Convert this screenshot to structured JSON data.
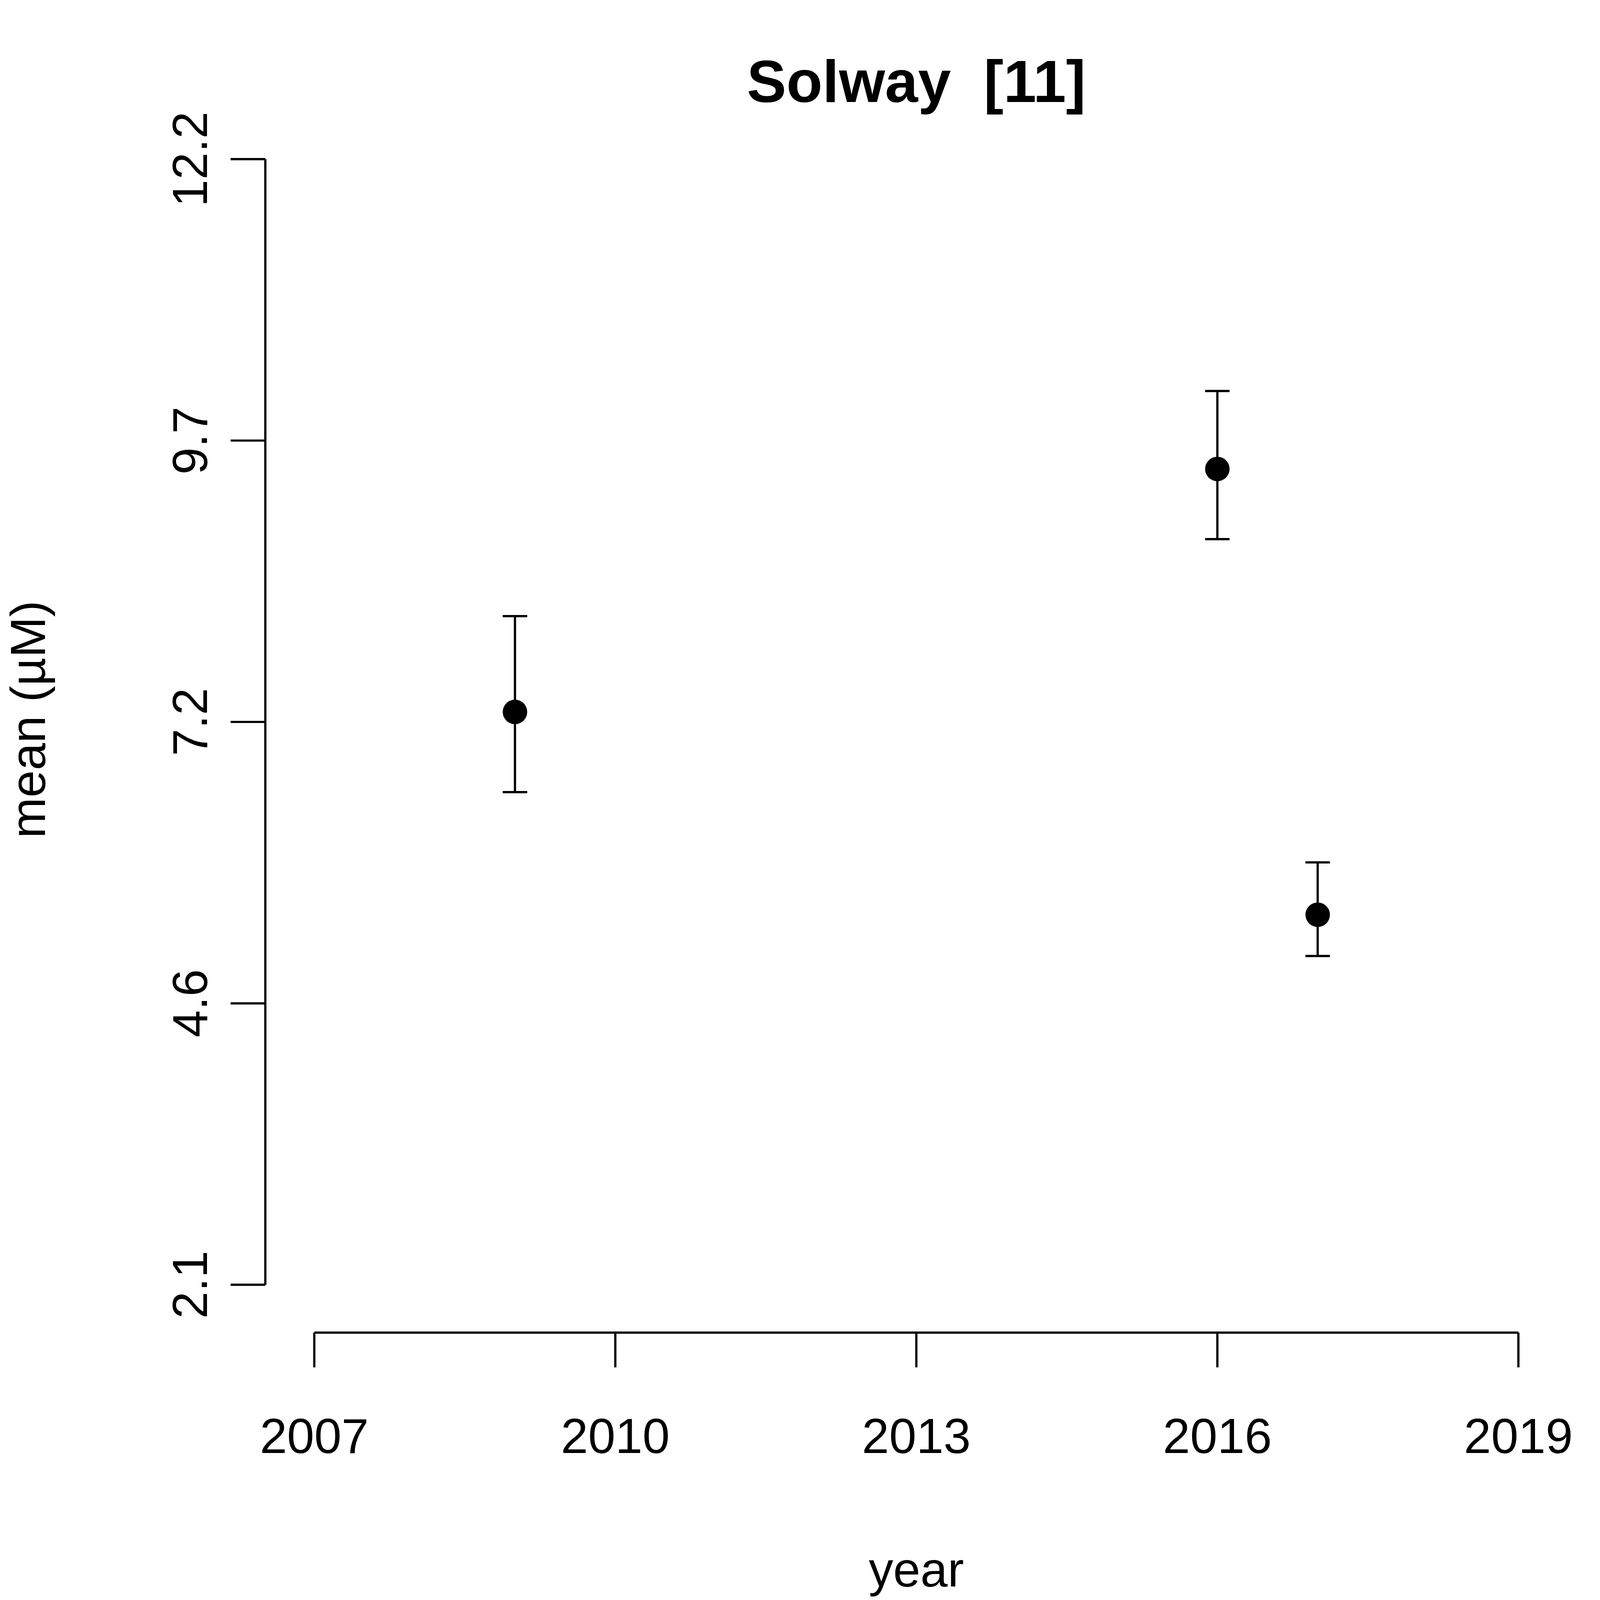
{
  "chart_data": {
    "type": "scatter",
    "title": "Solway  [11]",
    "x_label": "year",
    "y_label": "mean (µM)",
    "x": [
      2009,
      2016,
      2017
    ],
    "values": [
      7.24,
      9.42,
      5.42
    ],
    "lower": [
      6.52,
      8.79,
      5.05
    ],
    "upper": [
      8.1,
      10.12,
      5.89
    ],
    "color": "#000000",
    "marker": "circle",
    "xlim": [
      2007,
      2019
    ],
    "xticks": [
      2007,
      2010,
      2013,
      2016,
      2019
    ],
    "ylim": [
      2.1,
      12.2
    ],
    "yticks": [
      2.1,
      {
        "value": 4.625,
        "label": "4.6"
      },
      {
        "value": 7.15,
        "label": "7.2"
      },
      {
        "value": 9.675,
        "label": "9.7"
      },
      12.2
    ],
    "grid": false
  }
}
